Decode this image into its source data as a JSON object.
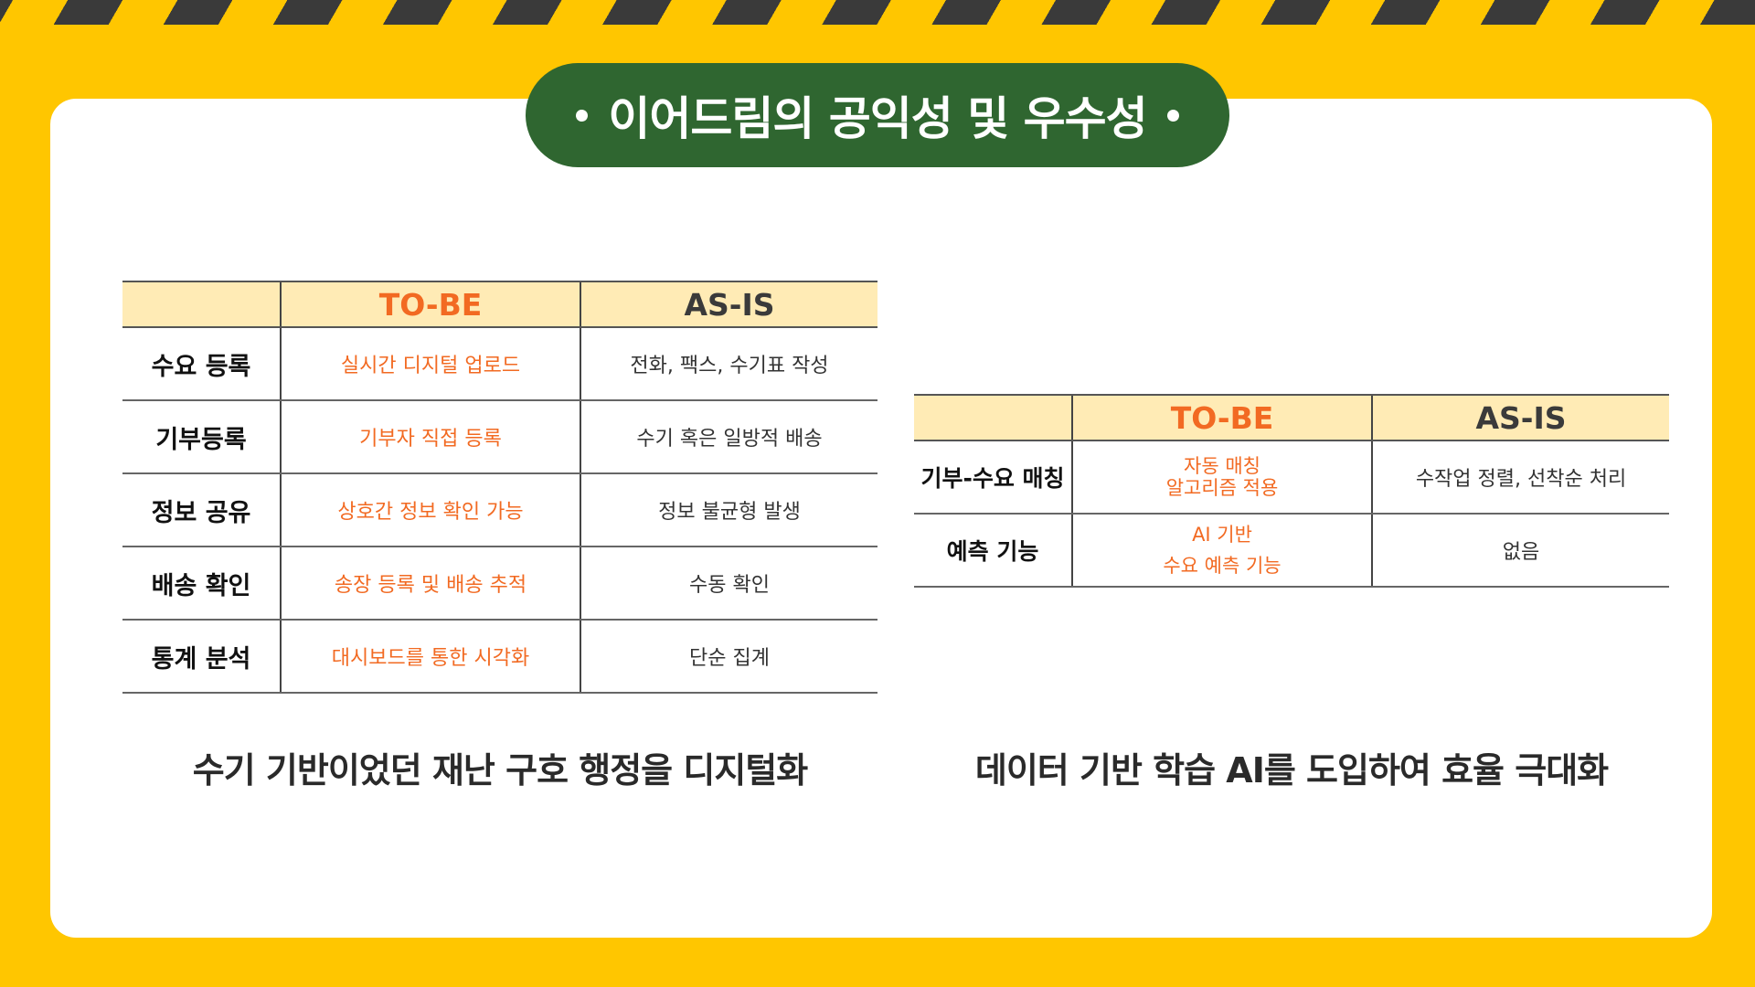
{
  "title": "이어드림의 공익성 및 우수성",
  "left_table": {
    "headers": [
      "",
      "TO-BE",
      "AS-IS"
    ],
    "rows": [
      {
        "label": "수요 등록",
        "tobe": "실시간 디지털 업로드",
        "asis": "전화, 팩스, 수기표 작성"
      },
      {
        "label": "기부등록",
        "tobe": "기부자 직접 등록",
        "asis": "수기 혹은 일방적 배송"
      },
      {
        "label": "정보 공유",
        "tobe": "상호간 정보 확인 가능",
        "asis": "정보 불균형 발생"
      },
      {
        "label": "배송 확인",
        "tobe": "송장 등록 및 배송 추적",
        "asis": "수동 확인"
      },
      {
        "label": "통계 분석",
        "tobe": "대시보드를 통한 시각화",
        "asis": "단순 집계"
      }
    ]
  },
  "right_table": {
    "headers": [
      "",
      "TO-BE",
      "AS-IS"
    ],
    "rows": [
      {
        "label": "기부-수요 매칭",
        "tobe_line1": "자동 매칭",
        "tobe_line2": "알고리즘 적용",
        "asis": "수작업 정렬, 선착순 처리"
      },
      {
        "label": "예측 기능",
        "tobe_line1": "AI 기반",
        "tobe_line2": "수요 예측 기능",
        "asis": "없음"
      }
    ]
  },
  "captions": {
    "left": "수기 기반이었던 재난 구호 행정을 디지털화",
    "right": "데이터 기반 학습 AI를 도입하여 효율 극대화"
  },
  "colors": {
    "background": "#FFC600",
    "stripe": "#3A3A3A",
    "title_pill": "#2F6630",
    "header_fill": "#FFEBB5",
    "tobe_text": "#F26A22"
  }
}
